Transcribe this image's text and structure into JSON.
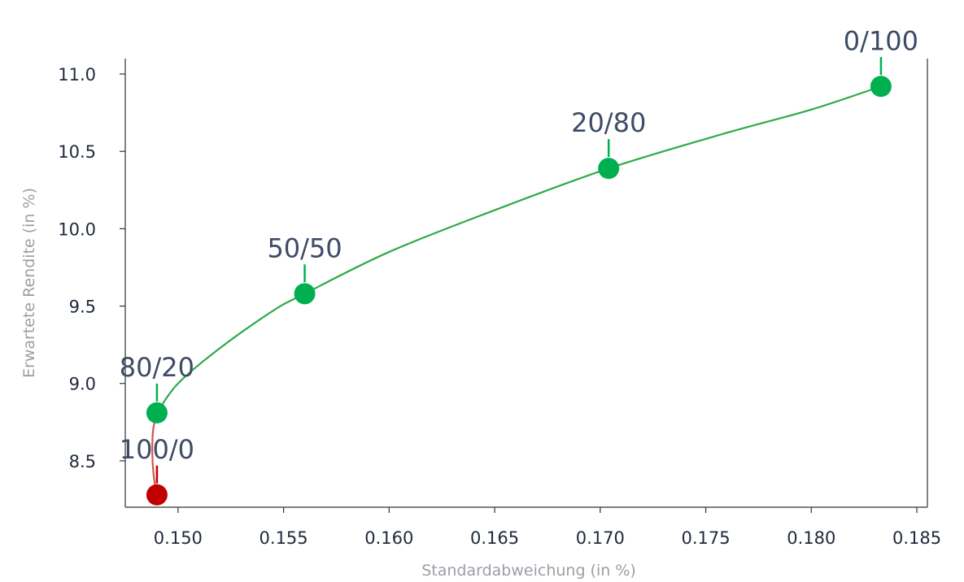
{
  "chart_data": {
    "type": "line",
    "title": "",
    "xlabel": "Standardabweichung (in %)",
    "ylabel": "Erwartete Rendite (in %)",
    "xlim": [
      0.1475,
      0.1855
    ],
    "ylim": [
      8.2,
      11.1
    ],
    "x_ticks": [
      0.15,
      0.155,
      0.16,
      0.165,
      0.17,
      0.175,
      0.18,
      0.185
    ],
    "x_tick_labels": [
      "0.150",
      "0.155",
      "0.160",
      "0.165",
      "0.170",
      "0.175",
      "0.180",
      "0.185"
    ],
    "y_ticks": [
      8.5,
      9.0,
      9.5,
      10.0,
      10.5,
      11.0
    ],
    "y_tick_labels": [
      "8.5",
      "9.0",
      "9.5",
      "10.0",
      "10.5",
      "11.0"
    ],
    "grid": false,
    "series": [
      {
        "color": "#d9534f",
        "x": [
          0.149,
          0.14885,
          0.14878,
          0.14882,
          0.149
        ],
        "y": [
          8.28,
          8.4,
          8.55,
          8.7,
          8.81
        ]
      },
      {
        "color": "#2eaa4a",
        "x": [
          0.149,
          0.15,
          0.152,
          0.1545,
          0.156,
          0.16,
          0.165,
          0.1704,
          0.176,
          0.18,
          0.1833
        ],
        "y": [
          8.81,
          9.0,
          9.23,
          9.47,
          9.58,
          9.85,
          10.12,
          10.39,
          10.62,
          10.77,
          10.92
        ]
      }
    ],
    "points": [
      {
        "label": "100/0",
        "x": 0.149,
        "y": 8.28,
        "color": "#c00000"
      },
      {
        "label": "80/20",
        "x": 0.149,
        "y": 8.81,
        "color": "#00b050"
      },
      {
        "label": "50/50",
        "x": 0.156,
        "y": 9.58,
        "color": "#00b050"
      },
      {
        "label": "20/80",
        "x": 0.1704,
        "y": 10.39,
        "color": "#00b050"
      },
      {
        "label": "0/100",
        "x": 0.1833,
        "y": 10.92,
        "color": "#00b050"
      }
    ],
    "colors": {
      "axis": "#333333",
      "tick_text": "#1f2a3a",
      "axis_title": "#9a9fa6",
      "label_text": "#3d4b66"
    }
  }
}
